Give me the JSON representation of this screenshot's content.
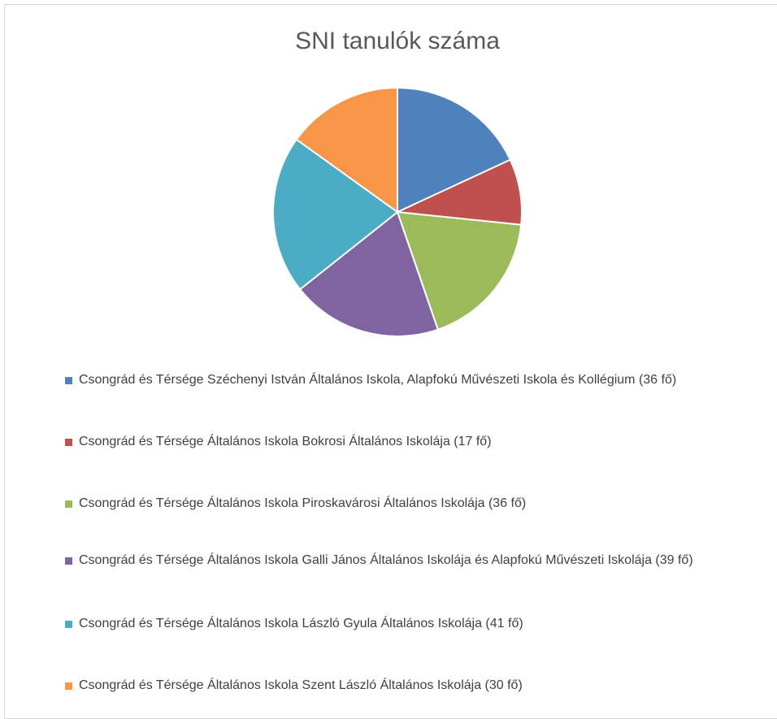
{
  "chart_data": {
    "type": "pie",
    "title": "SNI tanulók száma",
    "categories": [
      "Csongrád és Térsége Széchenyi István Általános Iskola, Alapfokú Művészeti Iskola és Kollégium (36 fő)",
      "Csongrád és Térsége Általános Iskola Bokrosi Általános Iskolája (17 fő)",
      "Csongrád és Térsége Általános Iskola Piroskavárosi Általános Iskolája (36 fő)",
      "Csongrád és Térsége Általános Iskola Galli János Általános Iskolája és Alapfokú Művészeti Iskolája (39 fő)",
      "Csongrád és Térsége Általános Iskola László Gyula Általános Iskolája (41 fő)",
      "Csongrád és Térsége Általános Iskola Szent László Általános Iskolája (30 fő)"
    ],
    "values": [
      36,
      17,
      36,
      39,
      41,
      30
    ],
    "colors": [
      "#4f81bd",
      "#c0504d",
      "#9bbb59",
      "#8064a2",
      "#4bacc6",
      "#f79646"
    ],
    "legend": "bottom"
  }
}
